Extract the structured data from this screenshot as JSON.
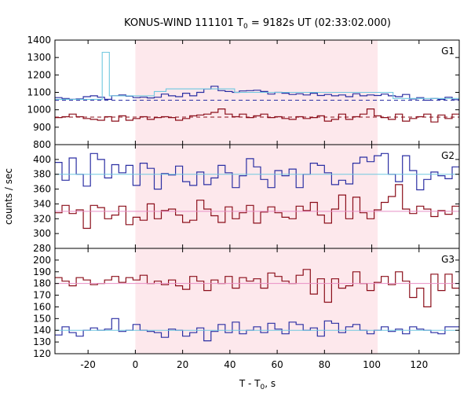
{
  "chart_data": {
    "type": "line",
    "title": "KONUS-WIND 111101 T",
    "title_sub": "0",
    "title_rest": " = 9182s UT (02:33:02.000)",
    "xlabel": "T - T",
    "xlabel_sub": "0",
    "xlabel_rest": ", s",
    "ylabel": "counts / sec",
    "xlim": [
      -34,
      137
    ],
    "xticks": [
      -20,
      0,
      20,
      40,
      60,
      80,
      100,
      120
    ],
    "shaded_interval": [
      0,
      102.5
    ],
    "colors": {
      "shade": "#fde8ec",
      "dark_red": "#8b0e1a",
      "navy": "#2b2fa3",
      "light_blue": "#70c8e0",
      "pink": "#e88fc6"
    },
    "panels": [
      {
        "label": "G1",
        "ylim": [
          800,
          1400
        ],
        "yticks": [
          800,
          900,
          1000,
          1100,
          1200,
          1300,
          1400
        ],
        "series": [
          {
            "color": "navy",
            "bin": 3,
            "x0": -34,
            "values": [
              1070,
              1065,
              1060,
              1062,
              1075,
              1080,
              1072,
              1060,
              1080,
              1085,
              1078,
              1070,
              1072,
              1068,
              1072,
              1090,
              1080,
              1075,
              1095,
              1080,
              1100,
              1120,
              1135,
              1110,
              1105,
              1100,
              1108,
              1110,
              1112,
              1105,
              1090,
              1100,
              1095,
              1088,
              1092,
              1085,
              1095,
              1082,
              1088,
              1080,
              1085,
              1075,
              1092,
              1080,
              1085,
              1082,
              1090,
              1080,
              1075,
              1088,
              1062,
              1070,
              1055,
              1065,
              1060,
              1072,
              1058
            ]
          },
          {
            "color": "dark_red",
            "bin": 3,
            "x0": -34,
            "values": [
              955,
              960,
              975,
              960,
              950,
              945,
              940,
              960,
              935,
              965,
              940,
              950,
              960,
              945,
              955,
              960,
              955,
              940,
              950,
              965,
              970,
              975,
              985,
              1005,
              975,
              960,
              975,
              955,
              965,
              975,
              955,
              960,
              950,
              945,
              960,
              950,
              955,
              965,
              935,
              945,
              975,
              945,
              960,
              975,
              1005,
              965,
              955,
              945,
              975,
              935,
              950,
              960,
              975,
              930,
              970,
              950,
              975
            ]
          },
          {
            "color": "light_blue",
            "type": "step",
            "points": [
              [
                -34,
                1060
              ],
              [
                -14,
                1060
              ],
              [
                -14,
                1330
              ],
              [
                -11,
                1330
              ],
              [
                -11,
                1080
              ],
              [
                8,
                1080
              ],
              [
                8,
                1105
              ],
              [
                13,
                1105
              ],
              [
                13,
                1120
              ],
              [
                42,
                1120
              ],
              [
                42,
                1100
              ],
              [
                109,
                1100
              ],
              [
                109,
                1065
              ],
              [
                137,
                1065
              ]
            ]
          },
          {
            "color": "navy",
            "type": "hline",
            "dashed": true,
            "value": 1055
          },
          {
            "color": "dark_red",
            "type": "hline",
            "dashed": true,
            "value": 958
          }
        ]
      },
      {
        "label": "G2",
        "ylim": [
          280,
          420
        ],
        "yticks": [
          280,
          300,
          320,
          340,
          360,
          380,
          400
        ],
        "series": [
          {
            "color": "navy",
            "bin": 3,
            "x0": -34,
            "values": [
              396,
              372,
              402,
              380,
              364,
              408,
              400,
              375,
              393,
              382,
              392,
              365,
              395,
              388,
              360,
              381,
              379,
              391,
              370,
              365,
              383,
              366,
              375,
              392,
              382,
              362,
              378,
              401,
              390,
              373,
              362,
              385,
              378,
              387,
              362,
              380,
              395,
              392,
              382,
              366,
              372,
              367,
              395,
              403,
              397,
              405,
              408,
              380,
              370,
              405,
              385,
              359,
              373,
              383,
              378,
              374,
              390
            ]
          },
          {
            "color": "dark_red",
            "bin": 3,
            "x0": -34,
            "values": [
              328,
              338,
              327,
              332,
              307,
              338,
              335,
              320,
              325,
              337,
              312,
              322,
              318,
              340,
              320,
              331,
              333,
              325,
              315,
              318,
              345,
              333,
              324,
              315,
              336,
              320,
              328,
              338,
              314,
              329,
              336,
              328,
              322,
              320,
              337,
              331,
              342,
              325,
              314,
              333,
              352,
              320,
              349,
              328,
              320,
              332,
              342,
              350,
              366,
              333,
              327,
              337,
              333,
              323,
              331,
              326,
              337
            ]
          },
          {
            "color": "light_blue",
            "type": "hline",
            "value": 380
          },
          {
            "color": "pink",
            "type": "hline",
            "value": 330
          }
        ]
      },
      {
        "label": "G3",
        "ylim": [
          120,
          210
        ],
        "yticks": [
          120,
          130,
          140,
          150,
          160,
          170,
          180,
          190,
          200
        ],
        "series": [
          {
            "color": "dark_red",
            "bin": 3,
            "x0": -34,
            "values": [
              185,
              182,
              178,
              185,
              183,
              179,
              180,
              183,
              186,
              181,
              185,
              183,
              187,
              180,
              182,
              179,
              183,
              178,
              175,
              186,
              182,
              174,
              183,
              180,
              186,
              176,
              185,
              182,
              184,
              176,
              189,
              186,
              182,
              180,
              187,
              192,
              171,
              184,
              164,
              184,
              176,
              178,
              190,
              180,
              174,
              181,
              186,
              179,
              190,
              182,
              168,
              176,
              160,
              188,
              174,
              188,
              176
            ]
          },
          {
            "color": "navy",
            "bin": 3,
            "x0": -34,
            "values": [
              136,
              143,
              138,
              135,
              140,
              142,
              140,
              141,
              150,
              139,
              140,
              145,
              140,
              139,
              138,
              134,
              141,
              140,
              135,
              138,
              142,
              131,
              139,
              145,
              138,
              147,
              137,
              140,
              143,
              138,
              146,
              141,
              137,
              147,
              145,
              140,
              142,
              135,
              148,
              146,
              138,
              143,
              145,
              140,
              137,
              140,
              143,
              139,
              141,
              137,
              143,
              141,
              140,
              138,
              137,
              143,
              143
            ]
          },
          {
            "color": "pink",
            "type": "hline",
            "value": 180
          },
          {
            "color": "light_blue",
            "type": "hline",
            "value": 140
          }
        ]
      }
    ]
  }
}
